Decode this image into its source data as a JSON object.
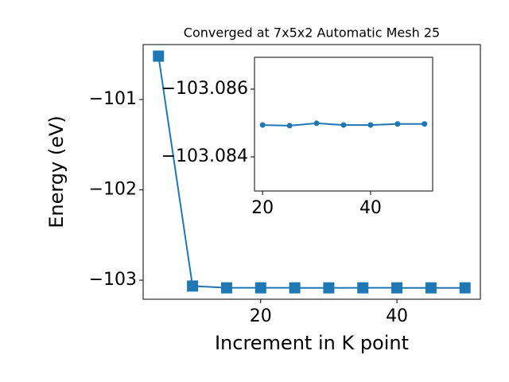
{
  "chart_data": [
    {
      "type": "line",
      "title": "Converged at 7x5x2 Automatic Mesh 25",
      "x_label": "Increment in K point",
      "y_label": "Energy (eV)",
      "x": [
        5,
        10,
        15,
        20,
        25,
        30,
        35,
        40,
        45,
        50
      ],
      "series": [
        {
          "color": "#1f77b4",
          "marker": "square",
          "values": [
            -100.52,
            -103.065,
            -103.0849,
            -103.0849,
            -103.0849,
            -103.085,
            -103.0849,
            -103.0849,
            -103.085,
            -103.085
          ]
        }
      ],
      "xlim": [
        2.75,
        52.25
      ],
      "ylim": [
        -103.211,
        -100.392
      ],
      "xticks": [
        20,
        40
      ],
      "yticks": [
        {
          "value": -103,
          "label": "−103"
        },
        {
          "value": -102,
          "label": "−102"
        },
        {
          "value": -101,
          "label": "−101"
        }
      ]
    },
    {
      "type": "line",
      "x": [
        20,
        25,
        30,
        35,
        40,
        45,
        50
      ],
      "series": [
        {
          "color": "#1f77b4",
          "marker": "circle",
          "values": [
            -103.08494,
            -103.08492,
            -103.08499,
            -103.08494,
            -103.08494,
            -103.08497,
            -103.08497
          ]
        }
      ],
      "xlim": [
        18.5,
        51.5
      ],
      "ylim": [
        -103.08299,
        -103.08694
      ],
      "xticks": [
        20,
        40
      ],
      "yticks": [
        {
          "value": -103.084,
          "label": "−103.084"
        },
        {
          "value": -103.086,
          "label": "−103.086"
        }
      ]
    }
  ]
}
